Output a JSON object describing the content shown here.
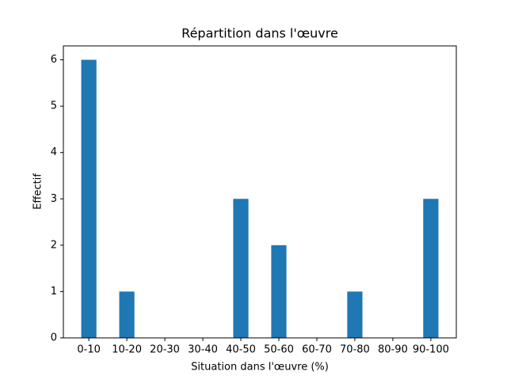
{
  "chart_data": {
    "type": "bar",
    "title": "Répartition dans l'œuvre",
    "x_label": "Situation dans l'œuvre (%)",
    "y_label": "Effectif",
    "categories": [
      "0-10",
      "10-20",
      "20-30",
      "30-40",
      "40-50",
      "50-60",
      "60-70",
      "70-80",
      "80-90",
      "90-100"
    ],
    "values": [
      6,
      1,
      0,
      0,
      3,
      2,
      0,
      1,
      0,
      3
    ],
    "color": "#1f77b4",
    "ylim": [
      0,
      6.3
    ],
    "yticks": [
      0,
      1,
      2,
      3,
      4,
      5,
      6
    ]
  }
}
